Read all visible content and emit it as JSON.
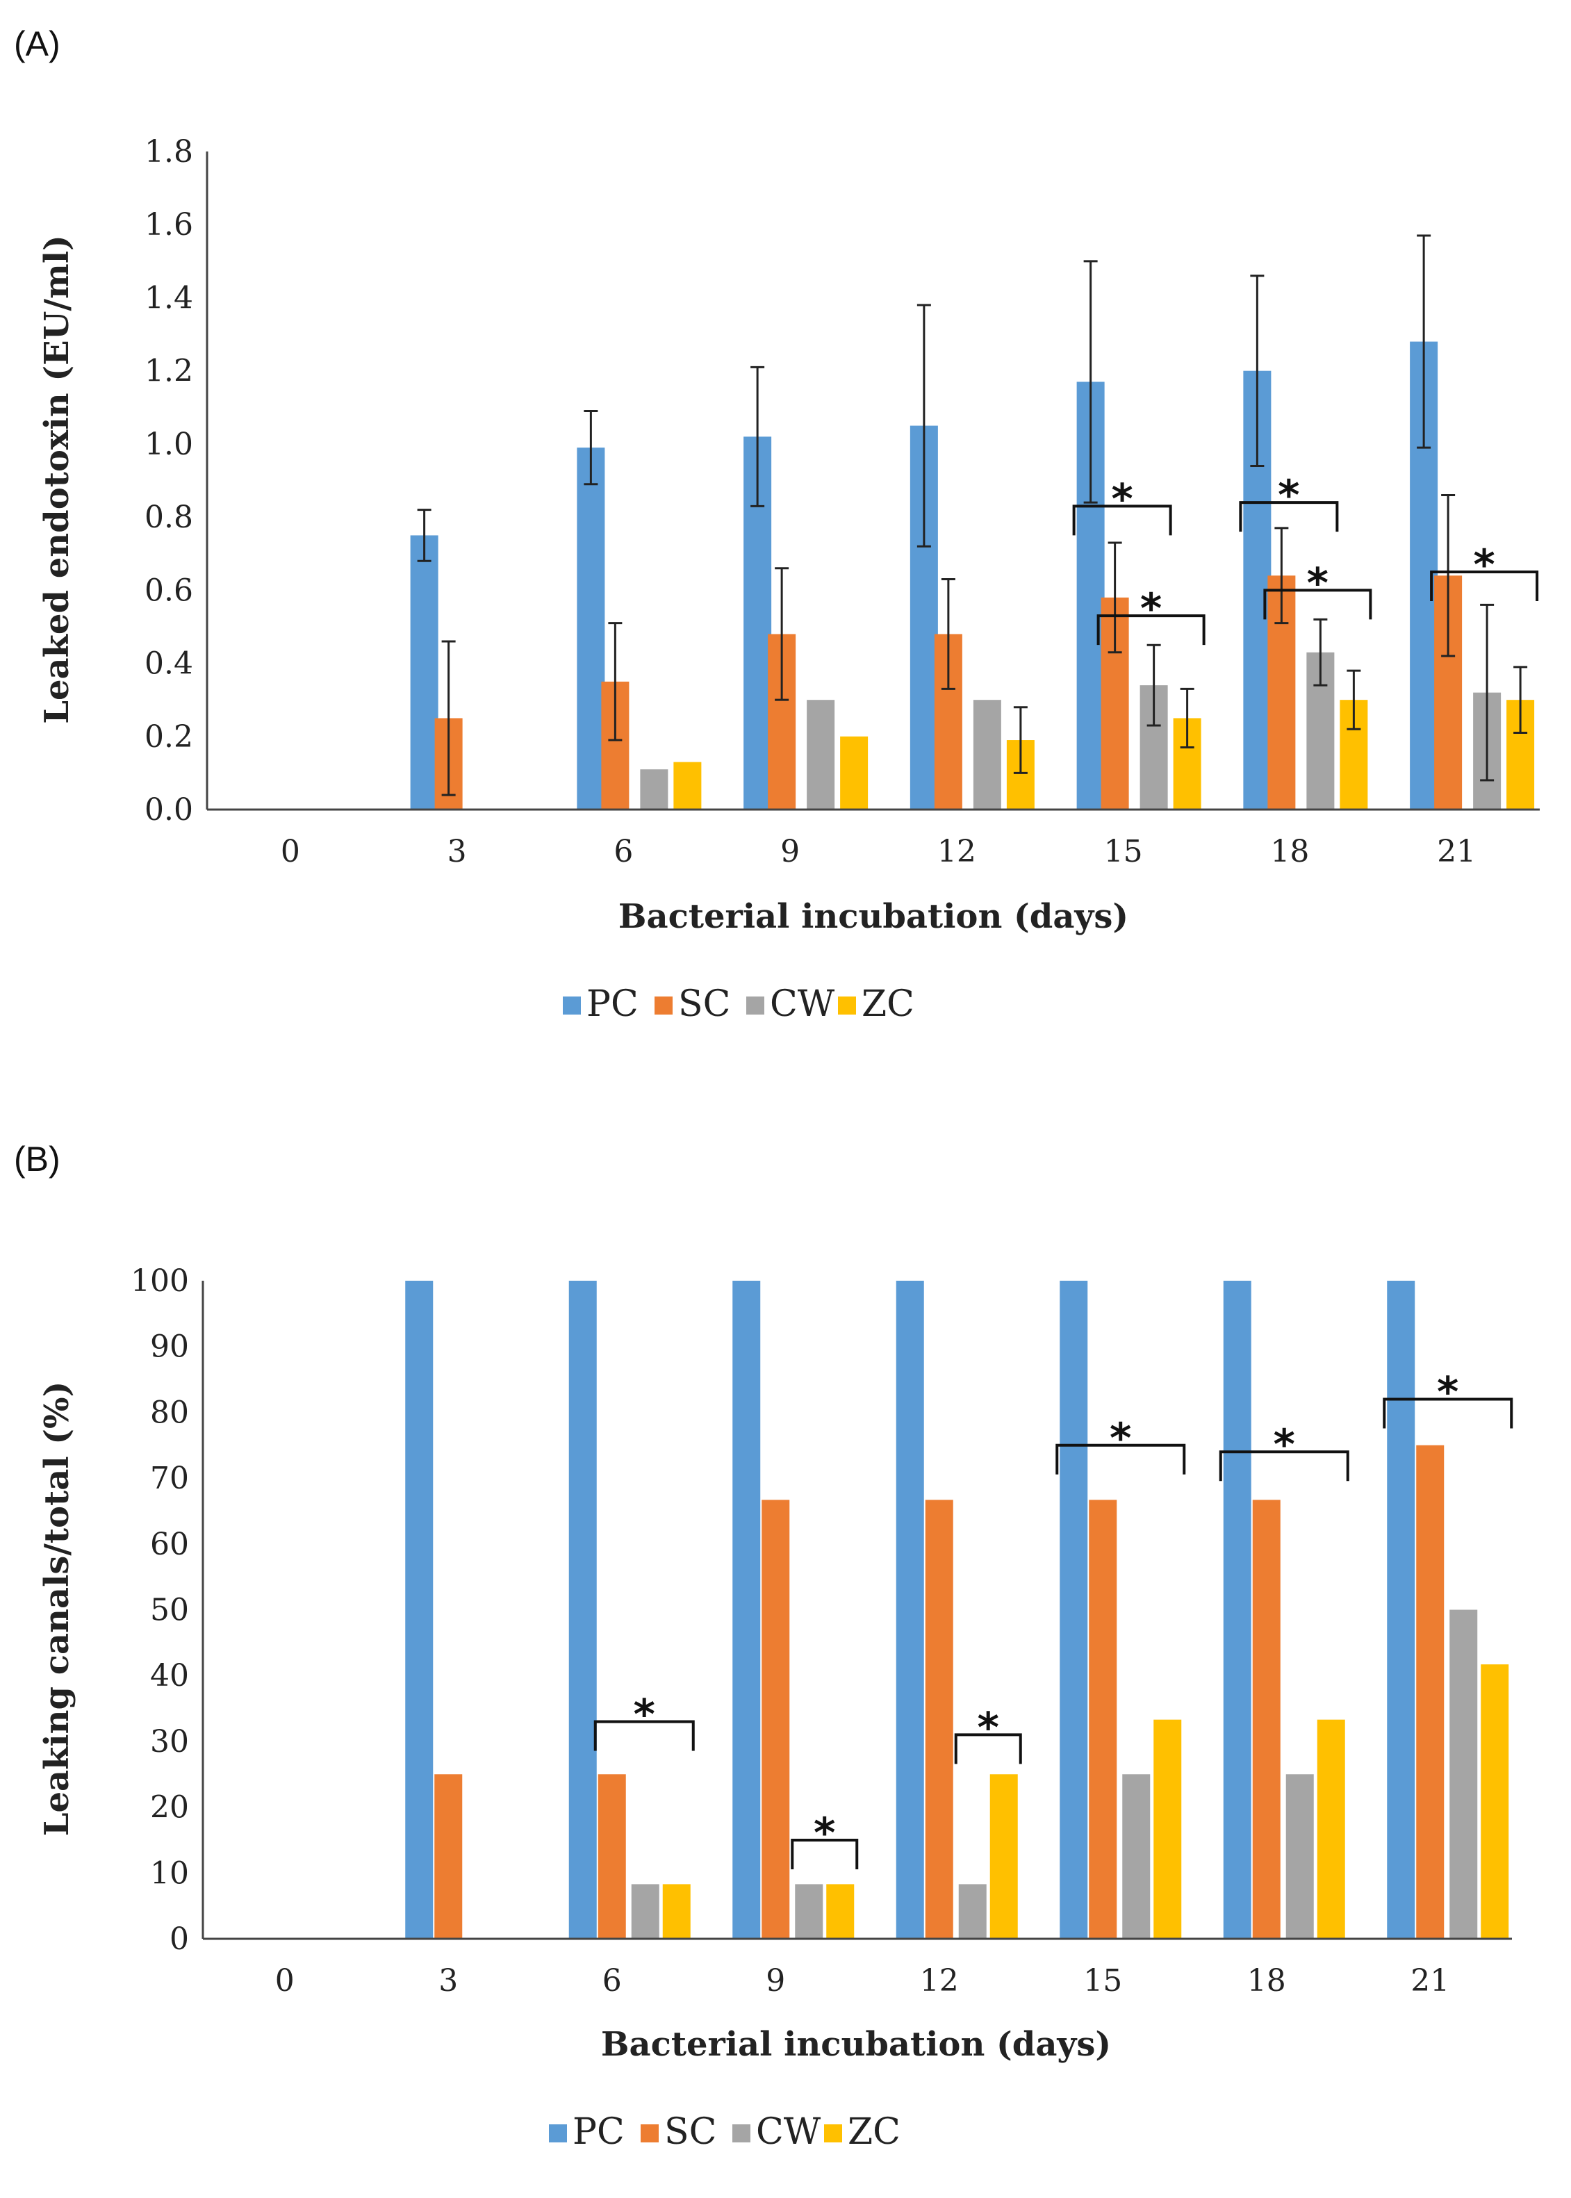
{
  "colors": {
    "PC": "#5b9bd5",
    "SC": "#ed7d31",
    "CW": "#a5a5a5",
    "ZC": "#ffc000"
  },
  "chart_data": [
    {
      "panel": "(A)",
      "type": "bar",
      "xlabel": "Bacterial incubation (days)",
      "ylabel": "Leaked endotoxin (EU/ml)",
      "categories": [
        "0",
        "3",
        "6",
        "9",
        "12",
        "15",
        "18",
        "21"
      ],
      "ylim": [
        0,
        1.8
      ],
      "yticks": [
        "0.0",
        "0.2",
        "0.4",
        "0.6",
        "0.8",
        "1.0",
        "1.2",
        "1.4",
        "1.6",
        "1.8"
      ],
      "grid": false,
      "legend": "bottom",
      "series": [
        {
          "name": "PC",
          "values": [
            0,
            0.75,
            0.99,
            1.02,
            1.05,
            1.17,
            1.2,
            1.28
          ],
          "errors": [
            0,
            0.07,
            0.1,
            0.19,
            0.33,
            0.33,
            0.26,
            0.29
          ]
        },
        {
          "name": "SC",
          "values": [
            0,
            0.25,
            0.35,
            0.48,
            0.48,
            0.58,
            0.64,
            0.64
          ],
          "errors": [
            0,
            0.21,
            0.16,
            0.18,
            0.15,
            0.15,
            0.13,
            0.22
          ]
        },
        {
          "name": "CW",
          "values": [
            0,
            0,
            0.11,
            0.3,
            0.3,
            0.34,
            0.43,
            0.32
          ],
          "errors": [
            0,
            0,
            0,
            0,
            0,
            0.11,
            0.09,
            0.24
          ]
        },
        {
          "name": "ZC",
          "values": [
            0,
            0,
            0.13,
            0.2,
            0.19,
            0.25,
            0.3,
            0.3
          ],
          "errors": [
            0,
            0,
            0,
            0,
            0.09,
            0.08,
            0.08,
            0.09
          ]
        }
      ],
      "annotations": [
        {
          "text": "*",
          "category": "15",
          "from": "PC",
          "to": "CW",
          "y": 0.83
        },
        {
          "text": "*",
          "category": "15",
          "from": "SC",
          "to": "ZC",
          "y": 0.53
        },
        {
          "text": "*",
          "category": "18",
          "from": "PC",
          "to": "CW",
          "y": 0.84
        },
        {
          "text": "*",
          "category": "18",
          "from": "SC",
          "to": "ZC",
          "y": 0.6
        },
        {
          "text": "*",
          "category": "21",
          "from": "SC",
          "to": "ZC",
          "y": 0.65
        }
      ]
    },
    {
      "panel": "(B)",
      "type": "bar",
      "xlabel": "Bacterial incubation (days)",
      "ylabel": "Leaking canals/total (%)",
      "categories": [
        "0",
        "3",
        "6",
        "9",
        "12",
        "15",
        "18",
        "21"
      ],
      "ylim": [
        0,
        100
      ],
      "yticks": [
        "0",
        "10",
        "20",
        "30",
        "40",
        "50",
        "60",
        "70",
        "80",
        "90",
        "100"
      ],
      "grid": false,
      "legend": "bottom",
      "series": [
        {
          "name": "PC",
          "values": [
            0,
            100,
            100,
            100,
            100,
            100,
            100,
            100
          ]
        },
        {
          "name": "SC",
          "values": [
            0,
            25,
            25,
            66.7,
            66.7,
            66.7,
            66.7,
            75
          ]
        },
        {
          "name": "CW",
          "values": [
            0,
            0,
            8.3,
            8.3,
            8.3,
            25,
            25,
            50
          ]
        },
        {
          "name": "ZC",
          "values": [
            0,
            0,
            8.3,
            8.3,
            25,
            33.3,
            33.3,
            41.7
          ]
        }
      ],
      "annotations": [
        {
          "text": "*",
          "category": "6",
          "from": "SC",
          "to": "ZC",
          "y": 33
        },
        {
          "text": "*",
          "category": "9",
          "from": "CW",
          "to": "ZC",
          "y": 15
        },
        {
          "text": "*",
          "category": "12",
          "from": "CW",
          "to": "ZC",
          "y": 31
        },
        {
          "text": "*",
          "category": "15",
          "from": "PC",
          "to": "ZC",
          "y": 75
        },
        {
          "text": "*",
          "category": "18",
          "from": "PC",
          "to": "ZC",
          "y": 74
        },
        {
          "text": "*",
          "category": "21",
          "from": "PC",
          "to": "ZC",
          "y": 82
        }
      ]
    }
  ]
}
